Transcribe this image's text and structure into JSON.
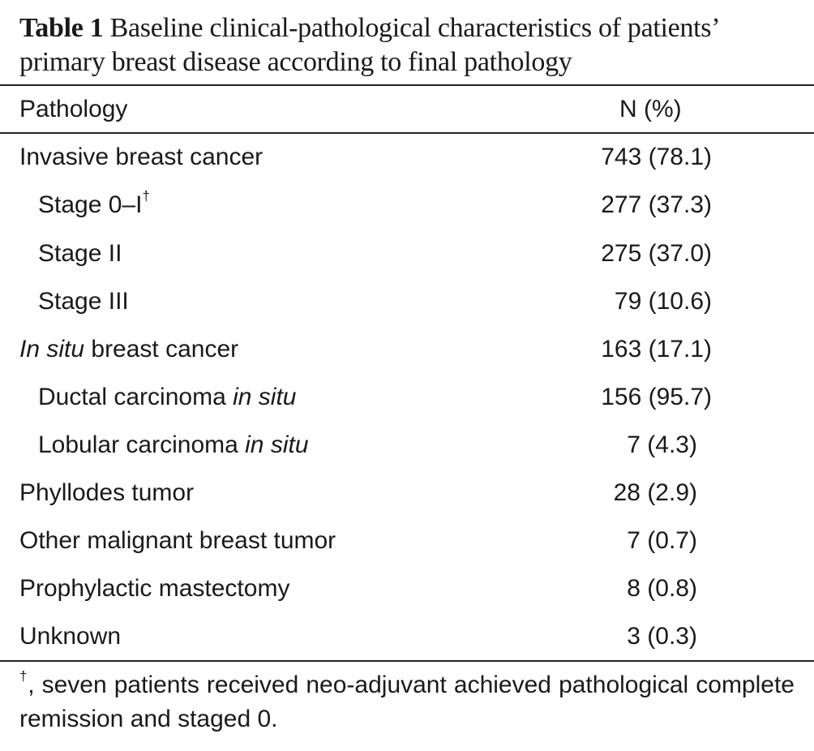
{
  "caption": {
    "label": "Table 1",
    "text": "Baseline clinical-pathological characteristics of patients’ primary breast disease according to final pathology"
  },
  "table": {
    "headers": [
      "Pathology",
      "N (%)"
    ],
    "rows": [
      {
        "pre": "",
        "italic": "",
        "post": "Invasive breast cancer",
        "sup": "",
        "value": "743 (78.1)"
      },
      {
        "pre": "Stage 0–I",
        "italic": "",
        "post": "",
        "sup": "†",
        "value": "277 (37.3)"
      },
      {
        "pre": "Stage II",
        "italic": "",
        "post": "",
        "sup": "",
        "value": "275 (37.0)"
      },
      {
        "pre": "Stage III",
        "italic": "",
        "post": "",
        "sup": "",
        "value": "79 (10.6)"
      },
      {
        "pre": "",
        "italic": "In situ",
        "post": " breast cancer",
        "sup": "",
        "value": "163 (17.1)"
      },
      {
        "pre": "Ductal carcinoma ",
        "italic": "in situ",
        "post": "",
        "sup": "",
        "value": "156 (95.7)"
      },
      {
        "pre": "Lobular carcinoma ",
        "italic": "in situ",
        "post": "",
        "sup": "",
        "value": "7 (4.3)"
      },
      {
        "pre": "Phyllodes tumor",
        "italic": "",
        "post": "",
        "sup": "",
        "value": "28 (2.9)"
      },
      {
        "pre": "Other malignant breast tumor",
        "italic": "",
        "post": "",
        "sup": "",
        "value": "7 (0.7)"
      },
      {
        "pre": "Prophylactic mastectomy",
        "italic": "",
        "post": "",
        "sup": "",
        "value": "8 (0.8)"
      },
      {
        "pre": "Unknown",
        "italic": "",
        "post": "",
        "sup": "",
        "value": "3 (0.3)"
      }
    ]
  },
  "footnote": {
    "symbol": "†",
    "text": ", seven patients received neo-adjuvant achieved pathological complete remission and staged 0."
  }
}
